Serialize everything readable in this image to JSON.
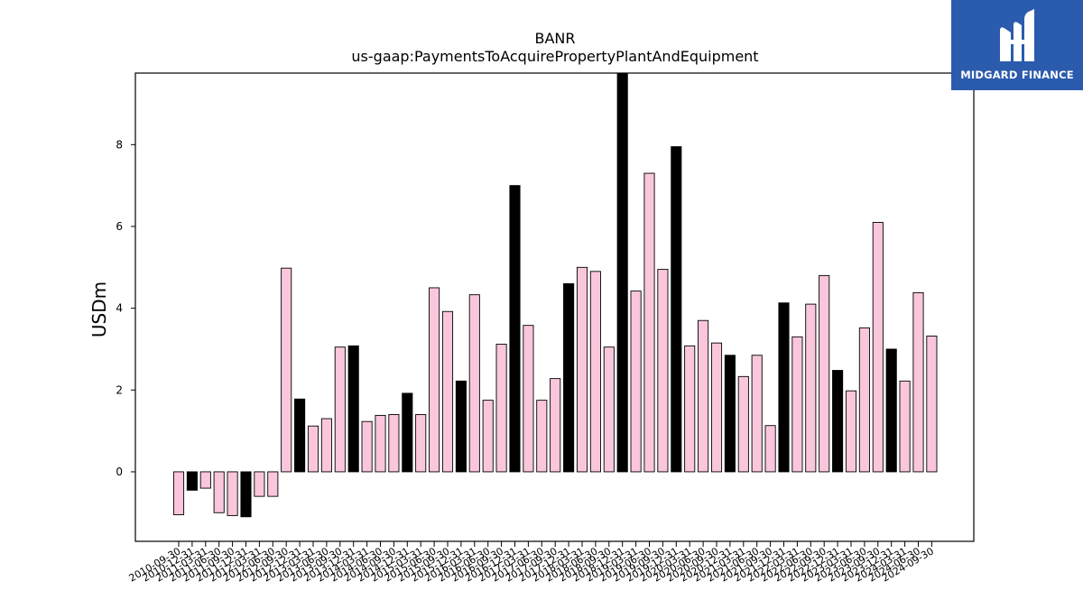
{
  "brand": {
    "name": "MIDGARD FINANCE",
    "background": "#2b5bad"
  },
  "colors": {
    "bar_default": "#f9c6dc",
    "bar_highlight": "#000000"
  },
  "chart_data": {
    "type": "bar",
    "title": "BANR",
    "subtitle": "us-gaap:PaymentsToAcquirePropertyPlantAndEquipment",
    "xlabel": "",
    "ylabel": "USDm",
    "ylim": [
      -1.7,
      9.75
    ],
    "yticks": [
      0,
      2,
      4,
      6,
      8
    ],
    "grid": false,
    "legend": "none",
    "categories": [
      "2010-09-30",
      "2010-12-31",
      "2011-03-31",
      "2011-06-30",
      "2011-09-30",
      "2011-12-31",
      "2012-03-31",
      "2012-06-30",
      "2012-09-30",
      "2012-12-31",
      "2013-03-31",
      "2013-06-30",
      "2013-09-30",
      "2013-12-31",
      "2014-03-31",
      "2014-06-30",
      "2014-09-30",
      "2014-12-31",
      "2015-03-31",
      "2015-06-30",
      "2015-09-30",
      "2015-12-31",
      "2016-03-31",
      "2016-06-30",
      "2016-09-30",
      "2016-12-31",
      "2017-03-31",
      "2017-06-30",
      "2017-09-30",
      "2017-12-31",
      "2018-03-31",
      "2018-06-30",
      "2018-09-30",
      "2018-12-31",
      "2019-03-31",
      "2019-06-30",
      "2019-09-30",
      "2019-12-31",
      "2020-03-31",
      "2020-06-30",
      "2020-09-30",
      "2020-12-31",
      "2021-03-31",
      "2021-06-30",
      "2021-09-30",
      "2021-12-31",
      "2022-03-31",
      "2022-06-30",
      "2022-09-30",
      "2022-12-31",
      "2023-03-31",
      "2023-06-30",
      "2023-09-30",
      "2023-12-31",
      "2024-03-31",
      "2024-06-30",
      "2024-09-30"
    ],
    "values": [
      -1.05,
      -0.45,
      -0.4,
      -1.0,
      -1.07,
      -1.1,
      -0.6,
      -0.6,
      4.98,
      1.78,
      1.12,
      1.3,
      3.05,
      3.08,
      1.23,
      1.38,
      1.4,
      1.92,
      1.4,
      4.5,
      3.92,
      2.22,
      4.33,
      1.75,
      3.12,
      7.0,
      3.58,
      1.75,
      2.28,
      4.6,
      5.0,
      4.9,
      3.05,
      9.8,
      4.42,
      7.3,
      4.95,
      7.95,
      3.08,
      3.7,
      3.15,
      2.85,
      2.33,
      2.85,
      1.13,
      4.13,
      3.3,
      4.1,
      4.8,
      2.48,
      1.98,
      3.52,
      6.1,
      3.0,
      2.22,
      4.38,
      3.32
    ],
    "highlight": [
      false,
      true,
      false,
      false,
      false,
      true,
      false,
      false,
      false,
      true,
      false,
      false,
      false,
      true,
      false,
      false,
      false,
      true,
      false,
      false,
      false,
      true,
      false,
      false,
      false,
      true,
      false,
      false,
      false,
      true,
      false,
      false,
      false,
      true,
      false,
      false,
      false,
      true,
      false,
      false,
      false,
      true,
      false,
      false,
      false,
      true,
      false,
      false,
      false,
      true,
      false,
      false,
      false,
      true,
      false,
      false,
      false
    ]
  }
}
